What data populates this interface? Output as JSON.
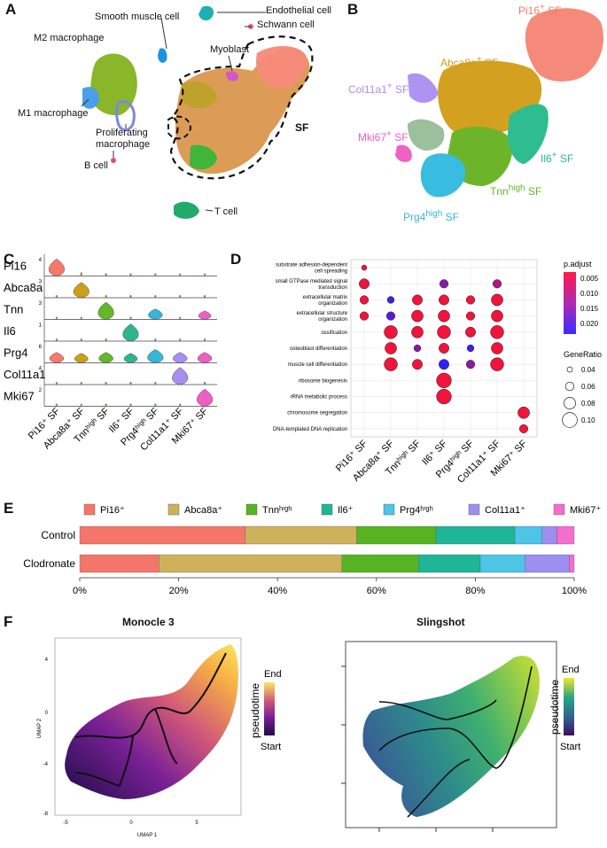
{
  "panels": {
    "a": "A",
    "b": "B",
    "c": "C",
    "d": "D",
    "e": "E",
    "f": "F"
  },
  "panelA": {
    "labels": {
      "endothelial": "Endothelial cell",
      "schwann": "Schwann cell",
      "smooth": "Smooth muscle cell",
      "m2": "M2 macrophage",
      "myoblast": "Myoblast",
      "m1": "M1 macrophage",
      "prolif1": "Proliferating",
      "prolif2": "macrophage",
      "bcell": "B cell",
      "tcell": "T cell",
      "sf": "SF"
    }
  },
  "panelB": {
    "labels": {
      "pi16": "Pi16",
      "abca8a": "Abca8a",
      "col11a1": "Col11a1",
      "mki67": "Mki67",
      "il6": "Il6",
      "tnn": "Tnn",
      "prg4": "Prg4",
      "sup_plus": "+",
      "sup_high": "high",
      "sf": "SF"
    },
    "colors": {
      "pi16": "#f47a6c",
      "abca8a": "#c9a019",
      "col11a1": "#a88ef2",
      "mki67": "#ef5fc3",
      "il6": "#2db58f",
      "tnn": "#65b72a",
      "prg4": "#36b6d8"
    }
  },
  "chart_data": [
    {
      "type": "violin",
      "panel": "C",
      "genes": [
        "Pi16",
        "Abca8a",
        "Tnn",
        "Il6",
        "Prg4",
        "Col11a1",
        "Mki67"
      ],
      "ymax_ticks": [
        4,
        3,
        3,
        1,
        6,
        4,
        2
      ],
      "clusters": [
        "Pi16⁺ SF",
        "Abca8a⁺ SF",
        "Tnnʰⁱᵍʰ SF",
        "Il6⁺ SF",
        "Prg4ʰⁱᵍʰ SF",
        "Col11a1⁺ SF",
        "Mki67⁺ SF"
      ],
      "colors": [
        "#f47a6c",
        "#c9a019",
        "#65b72a",
        "#2db58f",
        "#36b6d8",
        "#a88ef2",
        "#ef5fc3"
      ],
      "expression_level": [
        [
          0.9,
          0.2,
          0.05,
          0.05,
          0.05,
          0.03,
          0.03
        ],
        [
          0.05,
          0.8,
          0.05,
          0.03,
          0.03,
          0.03,
          0.03
        ],
        [
          0.02,
          0.05,
          0.9,
          0.03,
          0.55,
          0.02,
          0.45
        ],
        [
          0.02,
          0.02,
          0.02,
          0.9,
          0.02,
          0.02,
          0.02
        ],
        [
          0.55,
          0.5,
          0.55,
          0.5,
          0.7,
          0.55,
          0.55
        ],
        [
          0.02,
          0.02,
          0.02,
          0.02,
          0.02,
          0.9,
          0.02
        ],
        [
          0.02,
          0.02,
          0.02,
          0.02,
          0.02,
          0.02,
          0.9
        ]
      ]
    },
    {
      "type": "scatter",
      "panel": "D",
      "terms": [
        "substrate adhesion-dependent cell spreading",
        "small GTPase mediated signal transduction",
        "extracellular matrix organization",
        "extracellular structure organization",
        "ossification",
        "osteoblast differentiation",
        "muscle cell differentiation",
        "ribosome biogenesis",
        "rRNA metabolic process",
        "chromosome segregation",
        "DNA-templated DNA replication"
      ],
      "term_lines": [
        [
          "substrate adhesion-dependent",
          "cell spreading"
        ],
        [
          "small GTPase mediated signal",
          "transduction"
        ],
        [
          "extracellular matrix",
          "organization"
        ],
        [
          "extracellular structure",
          "organization"
        ],
        [
          "ossification"
        ],
        [
          "osteoblast differentiation"
        ],
        [
          "muscle cell differentiation"
        ],
        [
          "ribosome biogenesis"
        ],
        [
          "rRNA metabolic process"
        ],
        [
          "chromosome segregation"
        ],
        [
          "DNA-templated DNA replication"
        ]
      ],
      "clusters": [
        "Pi16⁺ SF",
        "Abca8a⁺ SF",
        "Tnnʰⁱᵍʰ SF",
        "Il6⁺ SF",
        "Prg4ʰⁱᵍʰ SF",
        "Col11a1⁺ SF",
        "Mki67⁺ SF"
      ],
      "points": [
        {
          "c": 0,
          "t": 0,
          "r": 0.04,
          "p": 0.001
        },
        {
          "c": 0,
          "t": 1,
          "r": 0.07,
          "p": 0.001
        },
        {
          "c": 0,
          "t": 2,
          "r": 0.06,
          "p": 0.001
        },
        {
          "c": 0,
          "t": 3,
          "r": 0.06,
          "p": 0.001
        },
        {
          "c": 1,
          "t": 2,
          "r": 0.05,
          "p": 0.02
        },
        {
          "c": 1,
          "t": 3,
          "r": 0.06,
          "p": 0.018
        },
        {
          "c": 1,
          "t": 4,
          "r": 0.09,
          "p": 0.001
        },
        {
          "c": 1,
          "t": 5,
          "r": 0.08,
          "p": 0.001
        },
        {
          "c": 1,
          "t": 6,
          "r": 0.09,
          "p": 0.001
        },
        {
          "c": 2,
          "t": 2,
          "r": 0.07,
          "p": 0.001
        },
        {
          "c": 2,
          "t": 3,
          "r": 0.08,
          "p": 0.001
        },
        {
          "c": 2,
          "t": 4,
          "r": 0.08,
          "p": 0.001
        },
        {
          "c": 2,
          "t": 5,
          "r": 0.05,
          "p": 0.012
        },
        {
          "c": 2,
          "t": 6,
          "r": 0.07,
          "p": 0.001
        },
        {
          "c": 3,
          "t": 1,
          "r": 0.06,
          "p": 0.012
        },
        {
          "c": 3,
          "t": 2,
          "r": 0.07,
          "p": 0.001
        },
        {
          "c": 3,
          "t": 3,
          "r": 0.08,
          "p": 0.001
        },
        {
          "c": 3,
          "t": 4,
          "r": 0.09,
          "p": 0.001
        },
        {
          "c": 3,
          "t": 5,
          "r": 0.07,
          "p": 0.001
        },
        {
          "c": 3,
          "t": 6,
          "r": 0.07,
          "p": 0.022
        },
        {
          "c": 3,
          "t": 7,
          "r": 0.1,
          "p": 0.001
        },
        {
          "c": 3,
          "t": 8,
          "r": 0.1,
          "p": 0.001
        },
        {
          "c": 4,
          "t": 2,
          "r": 0.06,
          "p": 0.001
        },
        {
          "c": 4,
          "t": 3,
          "r": 0.06,
          "p": 0.001
        },
        {
          "c": 4,
          "t": 4,
          "r": 0.07,
          "p": 0.001
        },
        {
          "c": 4,
          "t": 5,
          "r": 0.05,
          "p": 0.02
        },
        {
          "c": 4,
          "t": 6,
          "r": 0.06,
          "p": 0.012
        },
        {
          "c": 5,
          "t": 1,
          "r": 0.06,
          "p": 0.008
        },
        {
          "c": 5,
          "t": 2,
          "r": 0.08,
          "p": 0.001
        },
        {
          "c": 5,
          "t": 3,
          "r": 0.08,
          "p": 0.001
        },
        {
          "c": 5,
          "t": 4,
          "r": 0.09,
          "p": 0.001
        },
        {
          "c": 5,
          "t": 5,
          "r": 0.08,
          "p": 0.001
        },
        {
          "c": 5,
          "t": 6,
          "r": 0.09,
          "p": 0.001
        },
        {
          "c": 6,
          "t": 9,
          "r": 0.08,
          "p": 0.001
        },
        {
          "c": 6,
          "t": 10,
          "r": 0.06,
          "p": 0.001
        }
      ],
      "legend": {
        "padj_title": "p.adjust",
        "padj_ticks": [
          "0.005",
          "0.010",
          "0.015",
          "0.020"
        ],
        "gr_title": "GeneRatio",
        "gr_ticks": [
          "0.04",
          "0.06",
          "0.08",
          "0.10"
        ]
      }
    },
    {
      "type": "bar",
      "panel": "E",
      "stacked": true,
      "legend": [
        "Pi16⁺",
        "Abca8a⁺",
        "Tnnʰⁱᵍʰ",
        "Il6⁺",
        "Prg4ʰⁱᵍʰ",
        "Col11a1⁺",
        "Mki67⁺"
      ],
      "colors": [
        "#f4766a",
        "#cfb15c",
        "#57b321",
        "#1fb597",
        "#4cc5e6",
        "#9d8ef2",
        "#f36ecd"
      ],
      "series": [
        {
          "name": "Control",
          "values": [
            33.5,
            22.5,
            16,
            16,
            5.5,
            3,
            3.5
          ]
        },
        {
          "name": "Clodronate",
          "values": [
            16,
            37,
            15.5,
            12.5,
            9,
            9,
            1
          ]
        }
      ],
      "xticks": [
        "0%",
        "20%",
        "40%",
        "60%",
        "80%",
        "100%"
      ]
    }
  ],
  "panelF": {
    "monocle_title": "Monocle 3",
    "slingshot_title": "Slingshot",
    "xlabel": "UMAP 1",
    "ylabel": "UMAP 2",
    "xticks": [
      "-5",
      "0",
      "5"
    ],
    "yticks": [
      "4",
      "0",
      "-4",
      "-8"
    ],
    "legend_title": "pseudotime",
    "legend_end": "End",
    "legend_start": "Start"
  }
}
